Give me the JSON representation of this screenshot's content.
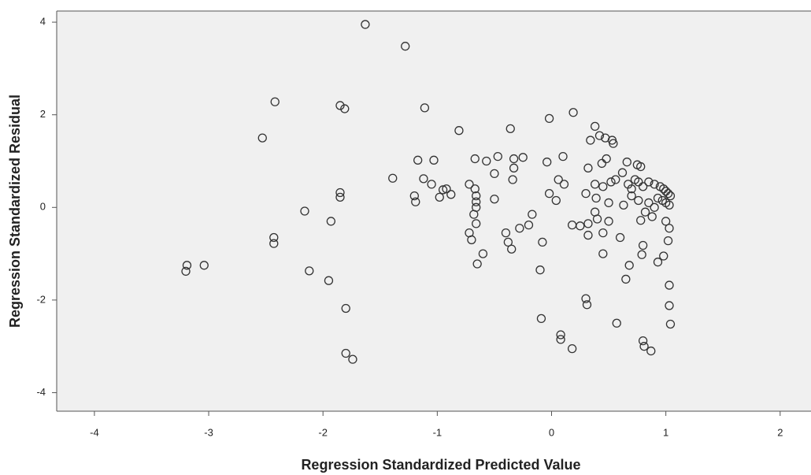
{
  "chart_data": {
    "type": "scatter",
    "xlabel": "Regression Standardized Predicted Value",
    "ylabel": "Regression Standardized Residual",
    "xlim": [
      -4.33,
      2.27
    ],
    "ylim": [
      -4.4,
      4.24
    ],
    "xticks": [
      -4,
      -3,
      -2,
      -1,
      0,
      1,
      2
    ],
    "yticks": [
      -4,
      -2,
      0,
      2,
      4
    ],
    "grid": false,
    "color": "#333333",
    "x": [
      -1.63,
      -1.28,
      -2.42,
      -1.85,
      -1.81,
      -1.11,
      -2.53,
      -0.81,
      -0.36,
      -0.02,
      0.19,
      0.38,
      0.42,
      0.47,
      0.53,
      0.54,
      0.34,
      -1.17,
      -1.03,
      -0.67,
      -0.57,
      -0.47,
      -0.33,
      -0.25,
      0.1,
      -0.04,
      0.48,
      0.44,
      0.66,
      0.75,
      0.78,
      -1.39,
      -1.12,
      -1.05,
      -0.95,
      -0.92,
      -0.72,
      -0.67,
      -0.5,
      -0.34,
      -0.33,
      0.06,
      0.11,
      -0.02,
      0.32,
      0.38,
      0.45,
      0.52,
      0.56,
      0.62,
      0.67,
      0.7,
      0.73,
      0.76,
      0.8,
      0.85,
      0.9,
      0.95,
      0.98,
      1.0,
      1.02,
      1.04,
      0.93,
      0.97,
      1.0,
      1.03,
      -1.85,
      -1.85,
      -1.2,
      -1.19,
      -0.88,
      -0.98,
      -0.5,
      -0.66,
      -0.66,
      -0.66,
      0.04,
      0.3,
      0.39,
      0.5,
      0.63,
      0.7,
      0.76,
      0.85,
      0.9,
      -2.16,
      -1.93,
      -2.43,
      -2.43,
      -0.17,
      -0.68,
      -0.66,
      -0.72,
      -0.7,
      -0.6,
      -0.4,
      -0.38,
      -0.35,
      -0.28,
      -0.2,
      -0.08,
      0.18,
      0.25,
      0.32,
      0.38,
      0.32,
      0.45,
      0.5,
      0.6,
      0.4,
      0.78,
      0.82,
      0.88,
      1.0,
      1.03,
      1.02,
      0.8,
      0.79,
      0.98,
      0.93,
      0.68,
      0.45,
      0.65,
      1.03,
      -0.65,
      -0.1,
      -3.19,
      -3.2,
      -3.04,
      -2.12,
      -1.95,
      -1.8,
      -1.8,
      -1.74,
      0.3,
      0.31,
      -0.09,
      0.08,
      0.08,
      0.18,
      0.57,
      0.8,
      0.81,
      0.87,
      1.03,
      1.04
    ],
    "y": [
      3.95,
      3.48,
      2.28,
      2.2,
      2.13,
      2.15,
      1.5,
      1.66,
      1.7,
      1.92,
      2.05,
      1.75,
      1.55,
      1.5,
      1.45,
      1.38,
      1.45,
      1.02,
      1.02,
      1.05,
      1.0,
      1.1,
      1.05,
      1.08,
      1.1,
      0.98,
      1.05,
      0.95,
      0.98,
      0.92,
      0.88,
      0.63,
      0.62,
      0.5,
      0.38,
      0.4,
      0.5,
      0.4,
      0.73,
      0.6,
      0.85,
      0.6,
      0.5,
      0.3,
      0.85,
      0.5,
      0.45,
      0.55,
      0.6,
      0.75,
      0.5,
      0.4,
      0.6,
      0.55,
      0.45,
      0.55,
      0.5,
      0.45,
      0.4,
      0.35,
      0.3,
      0.25,
      0.2,
      0.15,
      0.1,
      0.05,
      0.32,
      0.22,
      0.25,
      0.12,
      0.28,
      0.22,
      0.18,
      0.25,
      0.12,
      0.0,
      0.15,
      0.3,
      0.2,
      0.1,
      0.05,
      0.25,
      0.15,
      0.1,
      0.0,
      -0.08,
      -0.3,
      -0.65,
      -0.78,
      -0.15,
      -0.15,
      -0.35,
      -0.55,
      -0.7,
      -1.0,
      -0.55,
      -0.75,
      -0.9,
      -0.45,
      -0.38,
      -0.75,
      -0.38,
      -0.4,
      -0.35,
      -0.1,
      -0.6,
      -0.55,
      -0.3,
      -0.65,
      -0.25,
      -0.28,
      -0.1,
      -0.2,
      -0.3,
      -0.45,
      -0.72,
      -0.82,
      -1.02,
      -1.05,
      -1.18,
      -1.25,
      -1.0,
      -1.55,
      -1.68,
      -1.22,
      -1.35,
      -1.25,
      -1.38,
      -1.25,
      -1.37,
      -1.58,
      -2.18,
      -3.15,
      -3.28,
      -1.97,
      -2.1,
      -2.4,
      -2.75,
      -2.85,
      -3.05,
      -2.5,
      -2.88,
      -3.0,
      -3.1,
      -2.12,
      -2.52
    ]
  }
}
